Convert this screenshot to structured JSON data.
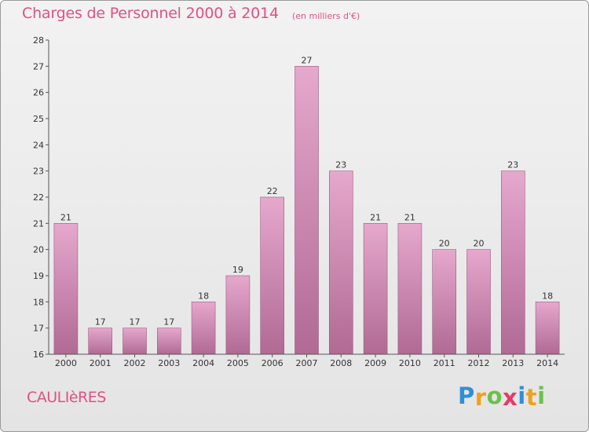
{
  "header": {
    "title": "Charges de Personnel 2000 à 2014",
    "subtitle": "(en milliers d'€)"
  },
  "footer": {
    "commune": "CAULIèRES",
    "brand": "Proxiti",
    "brand_letters": [
      {
        "char": "P",
        "color": "#2e8fd6"
      },
      {
        "char": "r",
        "color": "#f0a21b"
      },
      {
        "char": "o",
        "color": "#6cc04a"
      },
      {
        "char": "x",
        "color": "#e23a6a"
      },
      {
        "char": "i",
        "color": "#2e8fd6"
      },
      {
        "char": "t",
        "color": "#f0a21b"
      },
      {
        "char": "i",
        "color": "#6cc04a"
      }
    ]
  },
  "colors": {
    "accent": "#e0527f",
    "bar_top": "#e6a8cd",
    "bar_bottom": "#b06a94",
    "bar_edge": "#9c5a82"
  },
  "chart_data": {
    "type": "bar",
    "categories": [
      "2000",
      "2001",
      "2002",
      "2003",
      "2004",
      "2005",
      "2006",
      "2007",
      "2008",
      "2009",
      "2010",
      "2011",
      "2012",
      "2013",
      "2014"
    ],
    "values": [
      21,
      17,
      17,
      17,
      18,
      19,
      22,
      27,
      23,
      21,
      21,
      20,
      20,
      23,
      18
    ],
    "title": "Charges de Personnel 2000 à 2014",
    "subtitle": "(en milliers d'€)",
    "xlabel": "",
    "ylabel": "",
    "ylim": [
      16,
      28
    ],
    "yticks": [
      16,
      17,
      18,
      19,
      20,
      21,
      22,
      23,
      24,
      25,
      26,
      27,
      28
    ],
    "grid": false,
    "legend": "none"
  }
}
